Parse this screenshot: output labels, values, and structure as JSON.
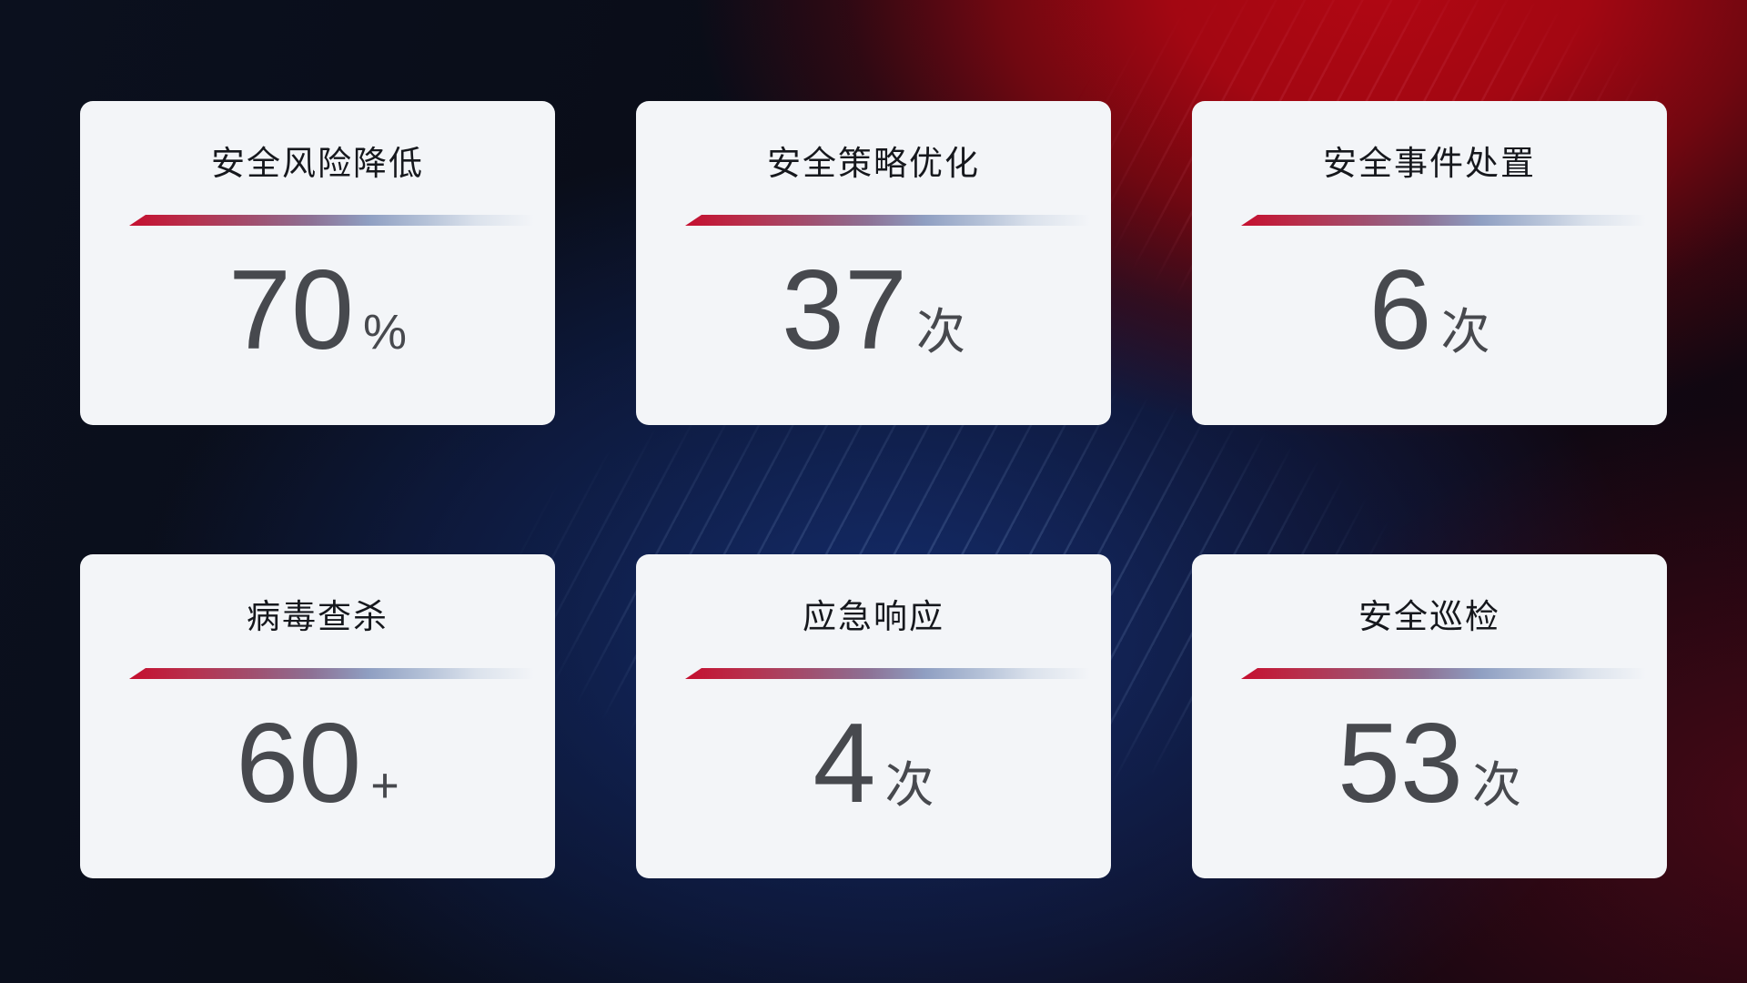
{
  "theme": {
    "card_bg": "#f3f5f8",
    "title_color": "#16181d",
    "value_color": "#47494e",
    "divider_gradient_start": "#c50f2f",
    "divider_gradient_mid": "#8f9fc2",
    "background_red": "#ae0712",
    "background_blue": "#142c69",
    "background_dark": "#0a0d18"
  },
  "cards": [
    {
      "title": "安全风险降低",
      "value": "70",
      "unit": "%"
    },
    {
      "title": "安全策略优化",
      "value": "37",
      "unit": "次"
    },
    {
      "title": "安全事件处置",
      "value": "6",
      "unit": "次"
    },
    {
      "title": "病毒查杀",
      "value": "60",
      "unit": "+"
    },
    {
      "title": "应急响应",
      "value": "4",
      "unit": "次"
    },
    {
      "title": "安全巡检",
      "value": "53",
      "unit": "次"
    }
  ]
}
